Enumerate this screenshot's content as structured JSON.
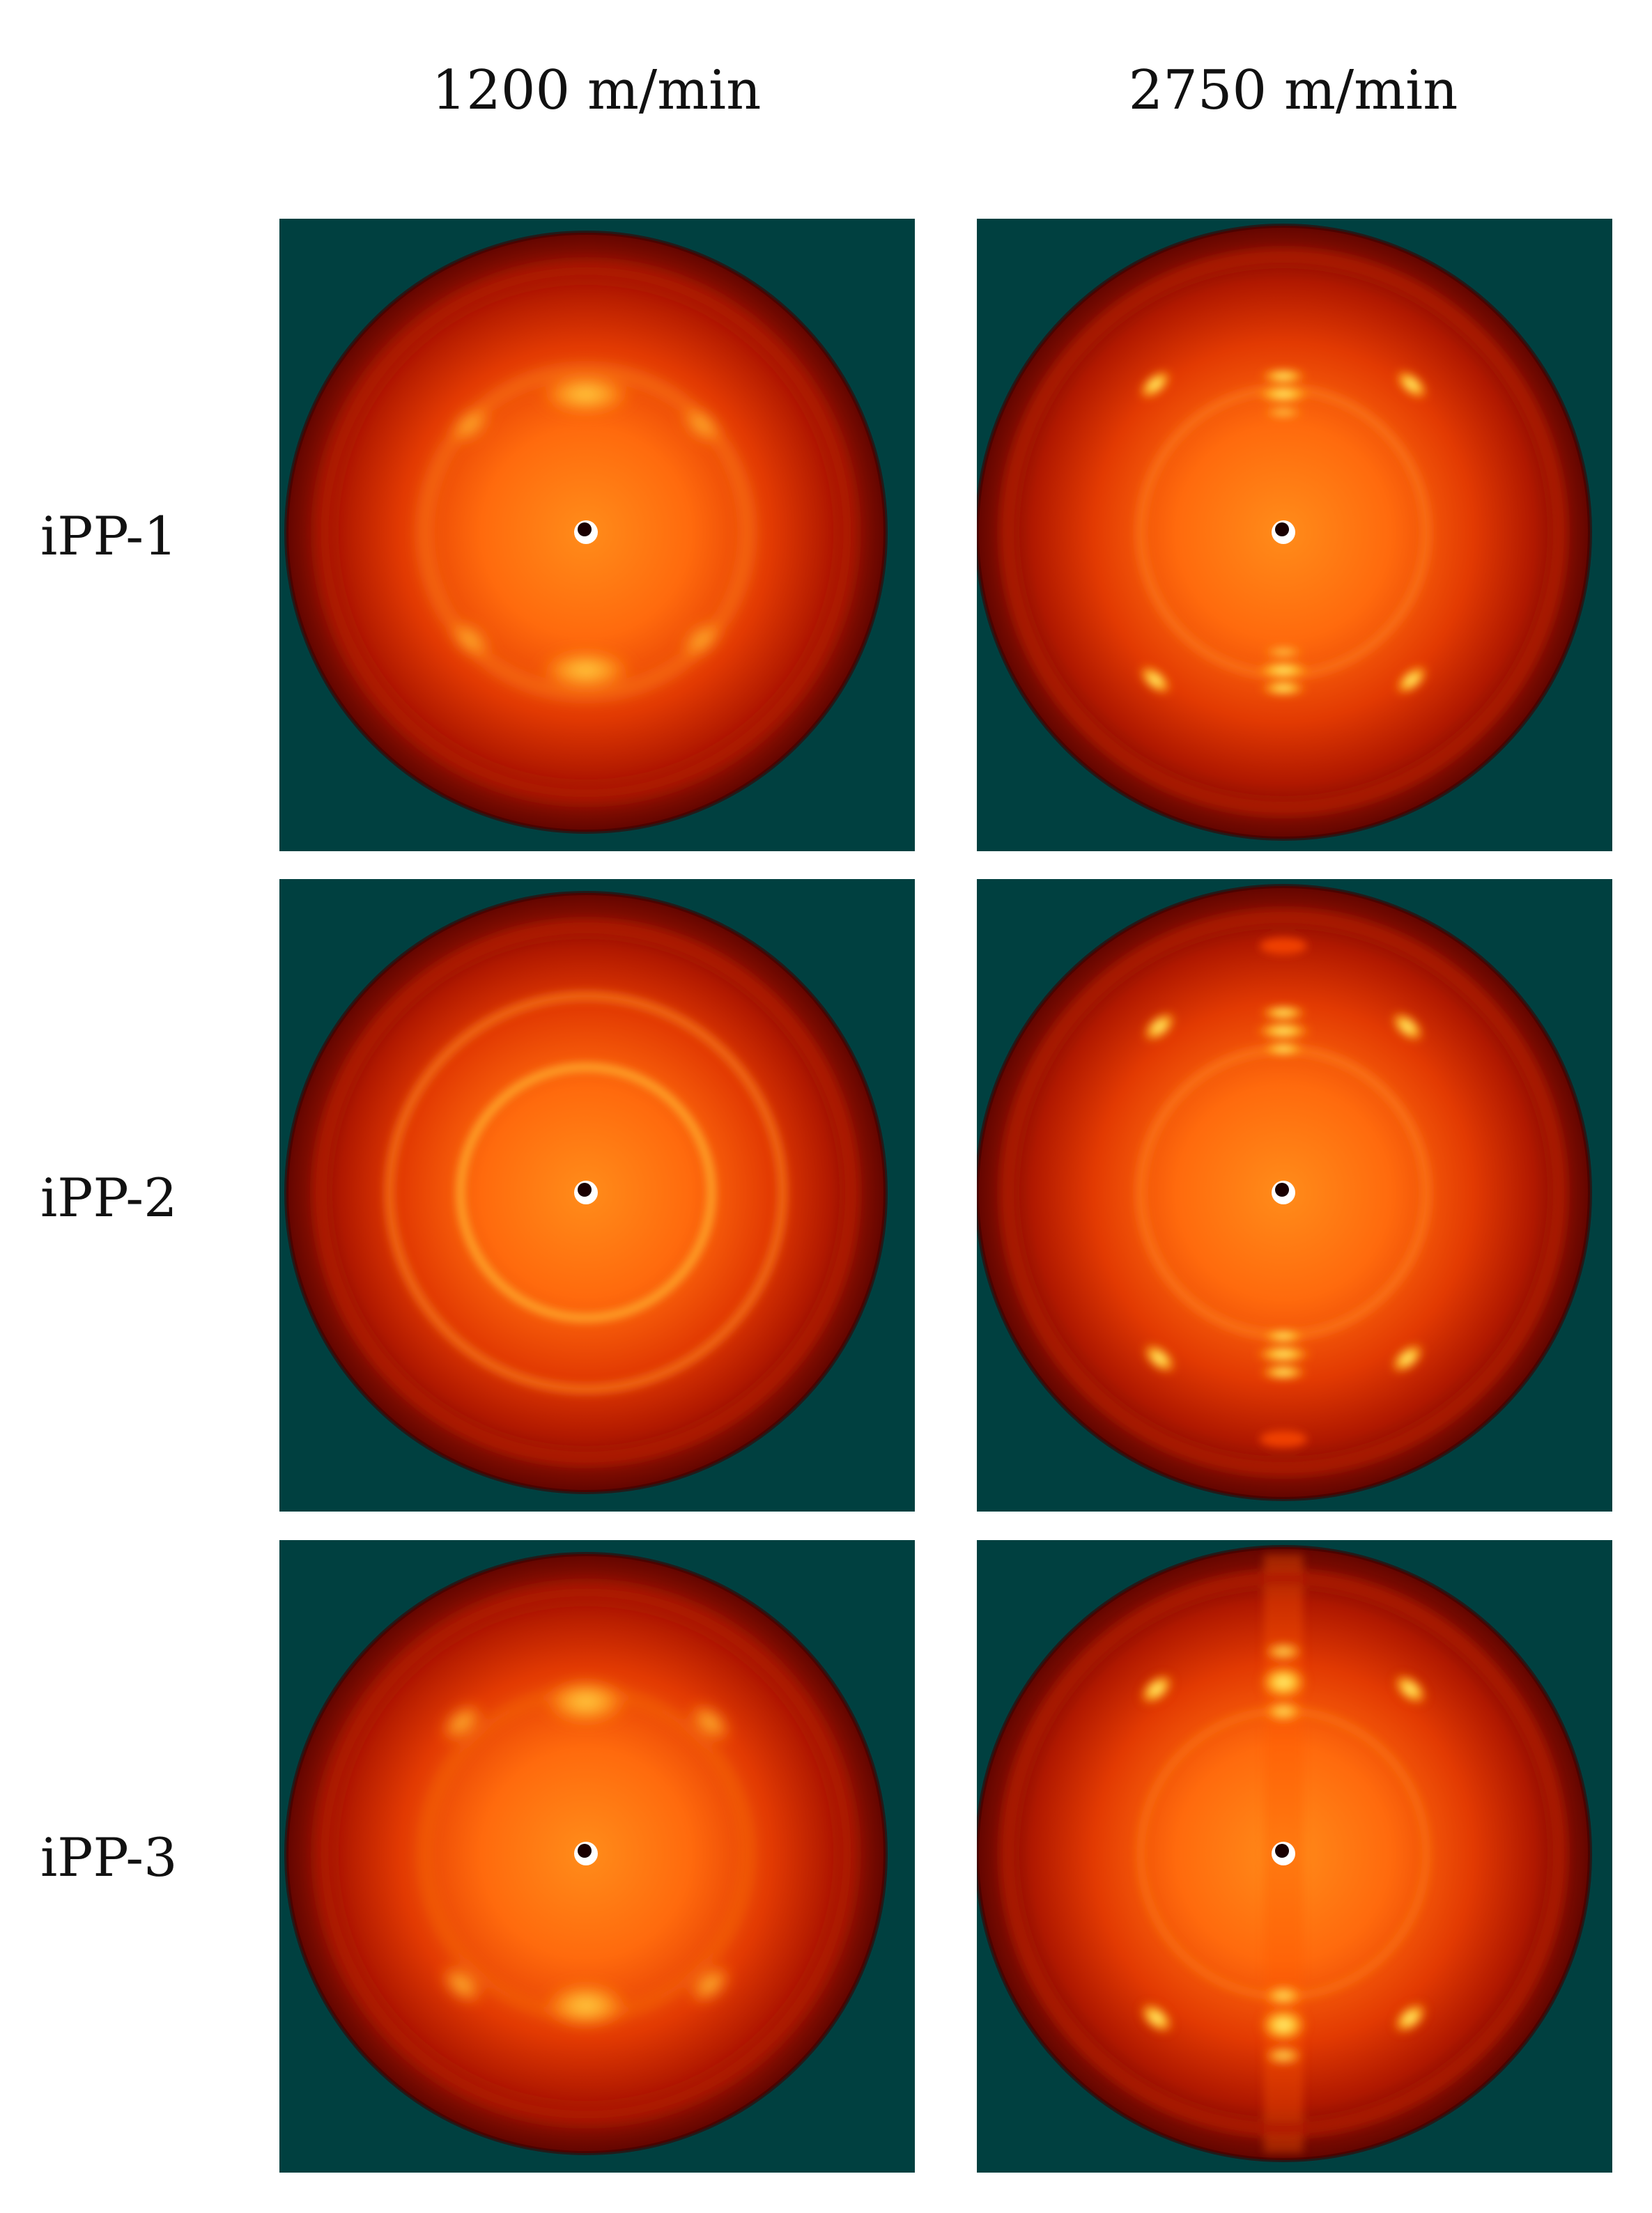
{
  "columns": [
    "1200 m/min",
    "2750 m/min"
  ],
  "rows": [
    "iPP-1",
    "iPP-2",
    "iPP-3"
  ],
  "colors": {
    "background": "#ffffff",
    "panel_background": "#004040",
    "pattern_outer": "#7a0a00",
    "pattern_mid": "#d42800",
    "pattern_inner": "#ff7a10",
    "reflection": "#ffd24a",
    "beamstop": "#ffffff"
  },
  "panels": [
    {
      "row": "iPP-1",
      "column": "1200 m/min",
      "pattern": "arcs"
    },
    {
      "row": "iPP-1",
      "column": "2750 m/min",
      "pattern": "spots"
    },
    {
      "row": "iPP-2",
      "column": "1200 m/min",
      "pattern": "rings"
    },
    {
      "row": "iPP-2",
      "column": "2750 m/min",
      "pattern": "spots"
    },
    {
      "row": "iPP-3",
      "column": "1200 m/min",
      "pattern": "arcs"
    },
    {
      "row": "iPP-3",
      "column": "2750 m/min",
      "pattern": "spots"
    }
  ]
}
